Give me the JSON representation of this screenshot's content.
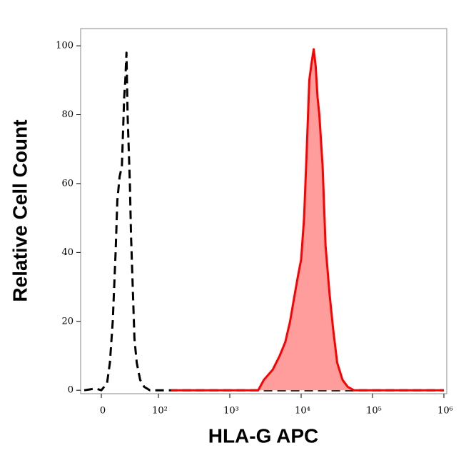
{
  "chart_data": {
    "type": "histogram-overlay",
    "xlabel": "HLA-G APC",
    "ylabel": "Relative Cell Count",
    "xscale": "biexponential",
    "xlim": [
      -35,
      1100000
    ],
    "xticks": [
      0,
      {
        "value": 100,
        "label": "10²"
      },
      {
        "value": 1000,
        "label": "10³"
      },
      {
        "value": 10000,
        "label": "10⁴"
      },
      {
        "value": 100000,
        "label": "10⁵"
      },
      {
        "value": 1000000,
        "label": "10⁶"
      }
    ],
    "ylim": [
      -1,
      105
    ],
    "yticks": [
      0,
      20,
      40,
      60,
      80,
      100
    ],
    "series": [
      {
        "color": "#000000",
        "style": "dashed",
        "filled": false,
        "x": [
          -30,
          -10,
          0,
          10,
          15,
          20,
          25,
          28,
          32,
          36,
          38,
          40,
          42,
          44,
          46,
          48,
          50,
          52,
          55,
          58,
          62,
          68,
          75,
          85,
          100,
          300,
          10000,
          1000000
        ],
        "values": [
          0,
          0.5,
          0,
          2,
          8,
          20,
          40,
          55,
          62,
          65,
          75,
          85,
          90,
          98,
          80,
          70,
          60,
          45,
          30,
          15,
          8,
          3,
          1,
          0,
          0,
          0,
          0,
          0
        ]
      },
      {
        "color": "#ff0000",
        "fill": "#ff9d9d",
        "style": "solid",
        "filled": true,
        "x": [
          150,
          2500,
          3000,
          4000,
          5000,
          6000,
          7000,
          8000,
          9000,
          10000,
          11000,
          12000,
          13000,
          14000,
          15000,
          16000,
          17000,
          18000,
          20000,
          22000,
          25000,
          28000,
          32000,
          38000,
          45000,
          55000,
          1000000
        ],
        "values": [
          0,
          0,
          3,
          6,
          10,
          14,
          20,
          27,
          33,
          38,
          50,
          70,
          90,
          95,
          99,
          94,
          85,
          80,
          65,
          42,
          28,
          18,
          8,
          3,
          1,
          0,
          0
        ]
      }
    ]
  }
}
